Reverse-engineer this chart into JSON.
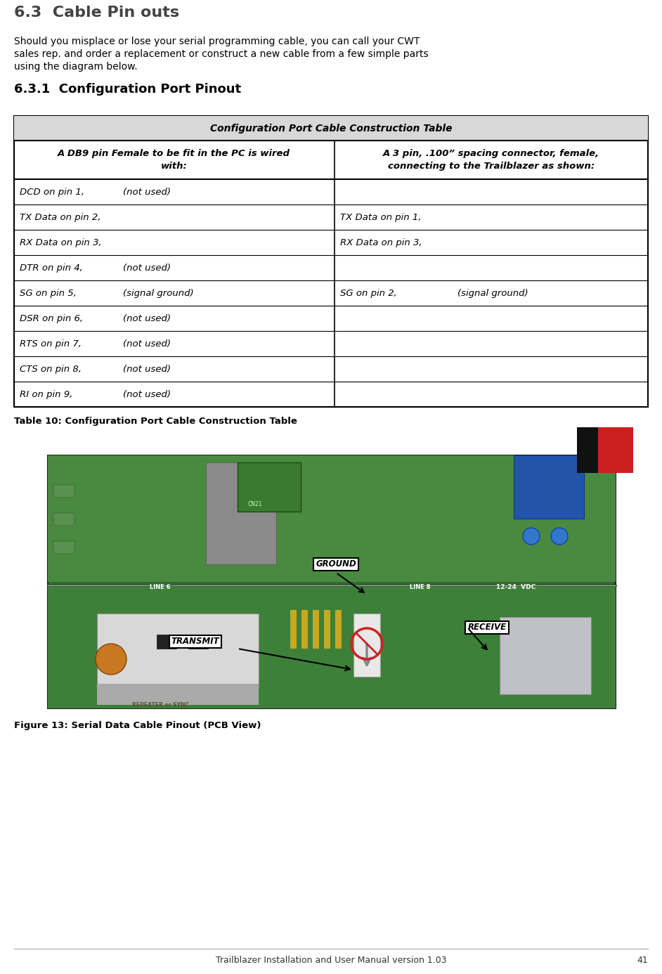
{
  "title_section": "6.3  Cable Pin outs",
  "body_text_lines": [
    "Should you misplace or lose your serial programming cable, you can call your CWT",
    "sales rep. and order a replacement or construct a new cable from a few simple parts",
    "using the diagram below."
  ],
  "subtitle": "6.3.1  Configuration Port Pinout",
  "table_title": "Configuration Port Cable Construction Table",
  "col1_header_lines": [
    "A DB9 pin Female to be fit in the PC is wired",
    "with:"
  ],
  "col2_header_lines": [
    "A 3 pin, .100” spacing connector, female,",
    "connecting to the Trailblazer as shown:"
  ],
  "table_rows": [
    [
      "DCD on pin 1,",
      "(not used)",
      "",
      ""
    ],
    [
      "TX Data on pin 2,",
      "",
      "TX Data on pin 1,",
      ""
    ],
    [
      "RX Data on pin 3,",
      "",
      "RX Data on pin 3,",
      ""
    ],
    [
      "DTR on pin 4,",
      "(not used)",
      "",
      ""
    ],
    [
      "SG on pin 5,",
      "(signal ground)",
      "SG on pin 2,",
      "(signal ground)"
    ],
    [
      "DSR on pin 6,",
      "(not used)",
      "",
      ""
    ],
    [
      "RTS on pin 7,",
      "(not used)",
      "",
      ""
    ],
    [
      "CTS on pin 8,",
      "(not used)",
      "",
      ""
    ],
    [
      "RI on pin 9,",
      "(not used)",
      "",
      ""
    ]
  ],
  "table_caption": "Table 10: Configuration Port Cable Construction Table",
  "figure_caption": "Figure 13: Serial Data Cable Pinout (PCB View)",
  "footer_text": "Trailblazer Installation and User Manual version 1.03",
  "page_number": "41",
  "bg_color": "#ffffff",
  "pcb_green_dark": "#3d7a3d",
  "pcb_green_light": "#5aaa50",
  "text_color": "#000000"
}
